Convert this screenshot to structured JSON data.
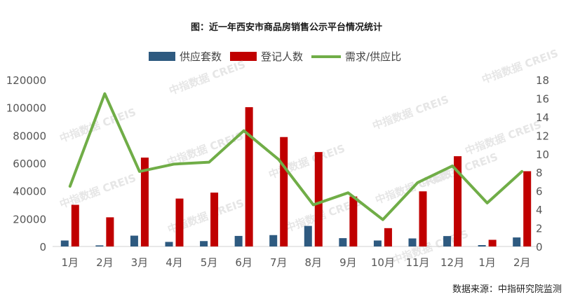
{
  "chart_data": {
    "type": "bar",
    "title": "图：近一年西安市商品房销售公示平台情况统计",
    "categories": [
      "1月",
      "2月",
      "3月",
      "4月",
      "5月",
      "6月",
      "7月",
      "8月",
      "9月",
      "10月",
      "11月",
      "12月",
      "1月",
      "2月"
    ],
    "series": [
      {
        "name": "供应套数",
        "type": "bar",
        "axis": "left",
        "color": "#2e5a80",
        "values": [
          4300,
          800,
          7800,
          3300,
          3900,
          7600,
          8200,
          14800,
          6000,
          4300,
          5800,
          7500,
          1000,
          6500
        ]
      },
      {
        "name": "登记人数",
        "type": "bar",
        "axis": "left",
        "color": "#c00000",
        "values": [
          30000,
          21000,
          64000,
          34500,
          38800,
          100300,
          78800,
          68000,
          36000,
          13200,
          39700,
          65000,
          4800,
          54200
        ]
      },
      {
        "name": "需求/供应比",
        "type": "line",
        "axis": "right",
        "color": "#70ad47",
        "values": [
          6.5,
          16.5,
          8.1,
          8.9,
          9.1,
          12.5,
          9.4,
          4.5,
          5.8,
          2.9,
          6.9,
          8.7,
          4.7,
          8.1
        ]
      }
    ],
    "y_left": {
      "min": 0,
      "max": 120000,
      "ticks": [
        0,
        20000,
        40000,
        60000,
        80000,
        100000,
        120000
      ]
    },
    "y_right": {
      "min": 0,
      "max": 18,
      "ticks": [
        0,
        2,
        4,
        6,
        8,
        10,
        12,
        14,
        16,
        18
      ]
    },
    "grid": false,
    "legend_position": "top"
  },
  "source": "数据来源：中指研究院监测",
  "watermark": "中指数据 CREIS"
}
